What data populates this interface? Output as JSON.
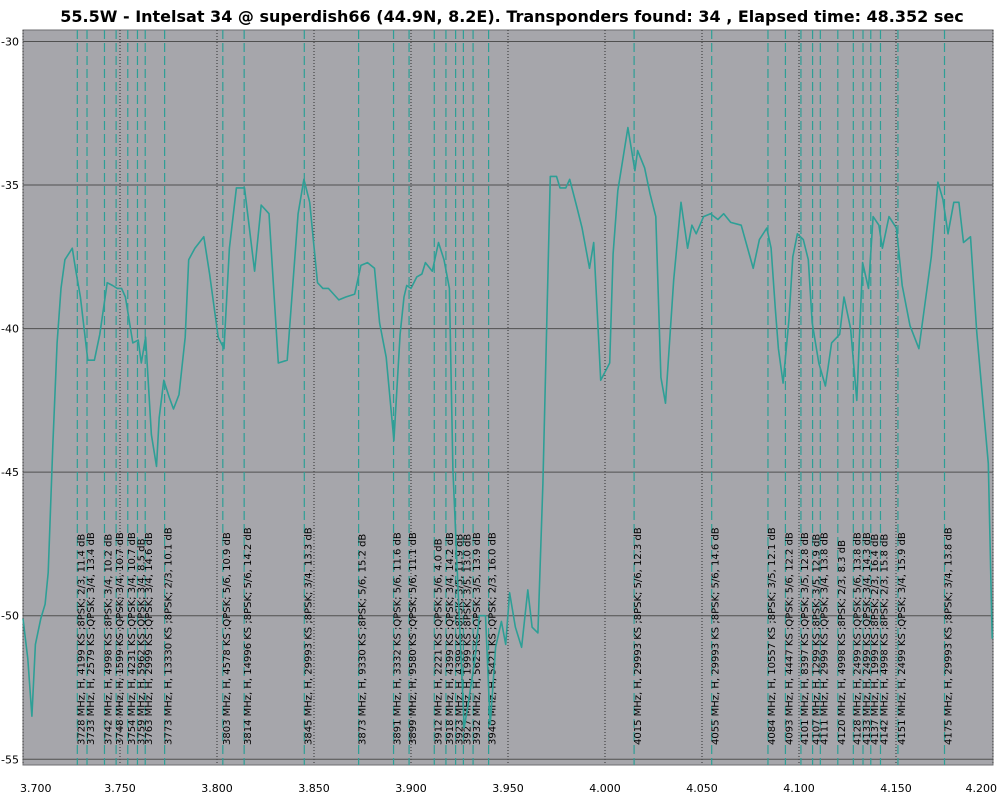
{
  "chart_data": {
    "type": "line",
    "title": "55.5W - Intelsat 34 @ superdish66 (44.9N, 8.2E). Transponders found: 34 , Elapsed time: 48.352 sec",
    "xlim": [
      3.7,
      4.2
    ],
    "ylim": [
      -55.2,
      -29.6
    ],
    "x_ticks": [
      "3.700",
      "3.750",
      "3.800",
      "3.850",
      "3.900",
      "3.950",
      "4.000",
      "4.050",
      "4.100",
      "4.150",
      "4.200"
    ],
    "y_ticks": [
      "-30",
      "-35",
      "-40",
      "-45",
      "-50",
      "-55"
    ],
    "colors": {
      "background": "#a6a6ab",
      "line": "#2e9f96",
      "marker": "#2e9f96"
    },
    "series": [
      {
        "x": [
          3.7,
          3.7025,
          3.7046,
          3.7064,
          3.7092,
          3.7114,
          3.713,
          3.7154,
          3.7176,
          3.7196,
          3.7216,
          3.7254,
          3.727,
          3.7296,
          3.7334,
          3.7368,
          3.7396,
          3.7434,
          3.7462,
          3.7486,
          3.7508,
          3.7528,
          3.7566,
          3.7594,
          3.761,
          3.7632,
          3.7662,
          3.7688,
          3.7702,
          3.7726,
          3.7754,
          3.7776,
          3.7804,
          3.7836,
          3.7854,
          3.7886,
          3.7932,
          3.7962,
          3.8006,
          3.8036,
          3.8064,
          3.81,
          3.8142,
          3.8194,
          3.8228,
          3.8268,
          3.8316,
          3.8362,
          3.8418,
          3.8448,
          3.8478,
          3.8518,
          3.8546,
          3.8574,
          3.8628,
          3.8664,
          3.871,
          3.8742,
          3.8776,
          3.8812,
          3.8838,
          3.8872,
          3.8912,
          3.8944,
          3.8964,
          3.8978,
          3.9,
          3.903,
          3.9056,
          3.9074,
          3.911,
          3.9142,
          3.917,
          3.9198,
          3.9216,
          3.9246,
          3.9274,
          3.9292,
          3.933,
          3.9352,
          3.9384,
          3.9408,
          3.9436,
          3.9466,
          3.9488,
          3.9508,
          3.9538,
          3.957,
          3.9602,
          3.9624,
          3.9654,
          3.968,
          3.9718,
          3.975,
          3.9768,
          3.9798,
          3.9818,
          3.9856,
          3.9882,
          3.992,
          3.9942,
          3.9978,
          4.0024,
          4.0042,
          4.0066,
          4.0118,
          4.0154,
          4.0168,
          4.0204,
          4.0232,
          4.0262,
          4.0288,
          4.0312,
          4.0354,
          4.0392,
          4.0426,
          4.0448,
          4.047,
          4.0508,
          4.0544,
          4.0582,
          4.0612,
          4.0648,
          4.0702,
          4.0764,
          4.0796,
          4.0834,
          4.0856,
          4.0878,
          4.0894,
          4.0918,
          4.0948,
          4.0968,
          4.0992,
          4.1022,
          4.1048,
          4.1068,
          4.1102,
          4.1136,
          4.1168,
          4.121,
          4.1232,
          4.1266,
          4.1298,
          4.1328,
          4.1358,
          4.1382,
          4.1412,
          4.143,
          4.1464,
          4.1502,
          4.1532,
          4.1572,
          4.1618,
          4.1682,
          4.1716,
          4.1742,
          4.1768,
          4.1798,
          4.1824,
          4.1848,
          4.1884,
          4.1916,
          4.1976,
          4.1996
        ],
        "y": [
          -50.1,
          -51.5,
          -53.5,
          -51.0,
          -50.1,
          -49.6,
          -48.5,
          -44.0,
          -40.5,
          -38.6,
          -37.6,
          -37.2,
          -37.9,
          -38.9,
          -41.1,
          -41.1,
          -40.2,
          -38.4,
          -38.5,
          -38.6,
          -38.6,
          -38.9,
          -40.5,
          -40.4,
          -41.2,
          -40.3,
          -43.7,
          -44.8,
          -43.1,
          -41.8,
          -42.4,
          -42.8,
          -42.3,
          -40.3,
          -37.6,
          -37.2,
          -36.8,
          -38.1,
          -40.3,
          -40.7,
          -37.2,
          -35.1,
          -35.1,
          -38.0,
          -35.7,
          -36.0,
          -41.2,
          -41.1,
          -36.0,
          -34.8,
          -35.6,
          -38.4,
          -38.6,
          -38.6,
          -39.0,
          -38.9,
          -38.8,
          -37.8,
          -37.7,
          -37.9,
          -39.8,
          -41.0,
          -43.9,
          -40.2,
          -38.9,
          -38.5,
          -38.6,
          -38.2,
          -38.1,
          -37.7,
          -38.0,
          -37.0,
          -37.6,
          -38.6,
          -44.9,
          -49.6,
          -53.9,
          -53.2,
          -51.5,
          -50.0,
          -50.0,
          -53.8,
          -51.1,
          -50.2,
          -51.0,
          -49.2,
          -50.4,
          -51.1,
          -49.1,
          -50.4,
          -50.6,
          -45.4,
          -34.7,
          -34.7,
          -35.1,
          -35.1,
          -34.8,
          -35.8,
          -36.5,
          -37.9,
          -37.0,
          -41.8,
          -41.2,
          -37.4,
          -35.2,
          -33.0,
          -34.5,
          -33.8,
          -34.4,
          -35.3,
          -36.1,
          -41.7,
          -42.6,
          -38.3,
          -35.6,
          -37.2,
          -36.4,
          -36.7,
          -36.1,
          -36.0,
          -36.2,
          -36.0,
          -36.3,
          -36.4,
          -37.9,
          -36.9,
          -36.5,
          -37.2,
          -39.3,
          -40.7,
          -41.9,
          -39.7,
          -37.5,
          -36.7,
          -36.9,
          -37.6,
          -39.8,
          -41.2,
          -42.0,
          -40.5,
          -40.2,
          -38.9,
          -40.0,
          -42.5,
          -37.7,
          -38.6,
          -36.1,
          -36.4,
          -37.2,
          -36.1,
          -36.5,
          -38.5,
          -39.9,
          -40.7,
          -37.5,
          -34.9,
          -35.5,
          -36.7,
          -35.6,
          -35.6,
          -37.0,
          -36.8,
          -40.1,
          -44.7,
          -50.8
        ]
      }
    ],
    "transponders": [
      {
        "freq": 3.728,
        "label": "3728 MHz, H, 4199 KS ;8PSK; 2/3, 11.4 dB"
      },
      {
        "freq": 3.733,
        "label": "3733 MHz, H, 2579 KS ;QPSK; 3/4, 13.4 dB"
      },
      {
        "freq": 3.742,
        "label": "3742 MHz, H, 4998 KS ;8PSK; 3/4, 10.2 dB"
      },
      {
        "freq": 3.748,
        "label": "3748 MHz, H, 1599 KS ;QPSK; 3/4, 10.7 dB"
      },
      {
        "freq": 3.754,
        "label": "3754 MHz, H, 4231 KS ;QPSK; 3/4, 10.7 dB"
      },
      {
        "freq": 3.759,
        "label": "3759 MHz, H, 5962 KS ;QPSK; 3/4, 8.5 dB"
      },
      {
        "freq": 3.763,
        "label": "3763 MHz, H, 2999 KS ;QPSK; 3/4, 14.6 dB"
      },
      {
        "freq": 3.773,
        "label": "3773 MHz, H, 13330 KS ;8PSK; 2/3, 10.1 dB"
      },
      {
        "freq": 3.803,
        "label": "3803 MHz, H, 4578 KS ;QPSK; 5/6, 10.9 dB"
      },
      {
        "freq": 3.814,
        "label": "3814 MHz, H, 14996 KS ;8PSK; 5/6, 14.2 dB"
      },
      {
        "freq": 3.845,
        "label": "3845 MHz, H, 29993 KS ;8PSK; 3/4, 13.3 dB"
      },
      {
        "freq": 3.873,
        "label": "3873 MHz, H, 9330 KS ;8PSK; 5/6, 15.2 dB"
      },
      {
        "freq": 3.891,
        "label": "3891 MHz, H, 3332 KS ;QPSK; 5/6, 11.6 dB"
      },
      {
        "freq": 3.899,
        "label": "3899 MHz, H, 9580 KS ;QPSK; 5/6, 11.1 dB"
      },
      {
        "freq": 3.912,
        "label": "3912 MHz, H, 2221 KS ;QPSK; 5/6, 4.0 dB"
      },
      {
        "freq": 3.918,
        "label": "3918 MHz, H, 4399 KS ;QPSK; 3/4, 14.2 dB"
      },
      {
        "freq": 3.923,
        "label": "3923 MHz, H, 4399 KS ;8PSK; 3/5, 11.9 dB"
      },
      {
        "freq": 3.927,
        "label": "3927 MHz, H, 1999 KS ;8PSK; 3/5, 13.0 dB"
      },
      {
        "freq": 3.932,
        "label": "3932 MHz, H, 5623 KS ;QPSK; 3/5, 13.9 dB"
      },
      {
        "freq": 3.94,
        "label": "3940 MHz, H, 5421 KS ;QPSK; 2/3, 16.0 dB"
      },
      {
        "freq": 4.015,
        "label": "4015 MHz, H, 29993 KS ;8PSK; 5/6, 12.3 dB"
      },
      {
        "freq": 4.055,
        "label": "4055 MHz, H, 29993 KS ;8PSK; 5/6, 14.6 dB"
      },
      {
        "freq": 4.084,
        "label": "4084 MHz, H, 10557 KS ;8PSK; 3/5, 12.1 dB"
      },
      {
        "freq": 4.093,
        "label": "4093 MHz, H, 4447 KS ;QPSK; 5/6, 12.2 dB"
      },
      {
        "freq": 4.101,
        "label": "4101 MHz, H, 8397 KS ;QPSK; 3/5, 12.8 dB"
      },
      {
        "freq": 4.107,
        "label": "4107 MHz, H, 1299 KS ;8PSK; 3/5, 12.9 dB"
      },
      {
        "freq": 4.111,
        "label": "4111 MHz, H, 2999 KS ;QPSK; 3/4, 13.8 dB"
      },
      {
        "freq": 4.12,
        "label": "4120 MHz, H, 4998 KS ;8PSK; 2/3, 8.3 dB"
      },
      {
        "freq": 4.128,
        "label": "4128 MHz, H, 2499 KS ;QPSK; 5/6, 13.8 dB"
      },
      {
        "freq": 4.133,
        "label": "4133 MHz, H, 2499 KS ;QPSK; 3/4, 14.3 dB"
      },
      {
        "freq": 4.137,
        "label": "4137 MHz, H, 1999 KS ;8PSK; 2/3, 16.4 dB"
      },
      {
        "freq": 4.142,
        "label": "4142 MHz, H, 4998 KS ;8PSK; 2/3, 15.8 dB"
      },
      {
        "freq": 4.151,
        "label": "4151 MHz, H, 2499 KS ;QPSK; 3/4, 15.9 dB"
      },
      {
        "freq": 4.175,
        "label": "4175 MHz, H, 29993 KS ;8PSK; 3/4, 13.8 dB"
      }
    ]
  }
}
